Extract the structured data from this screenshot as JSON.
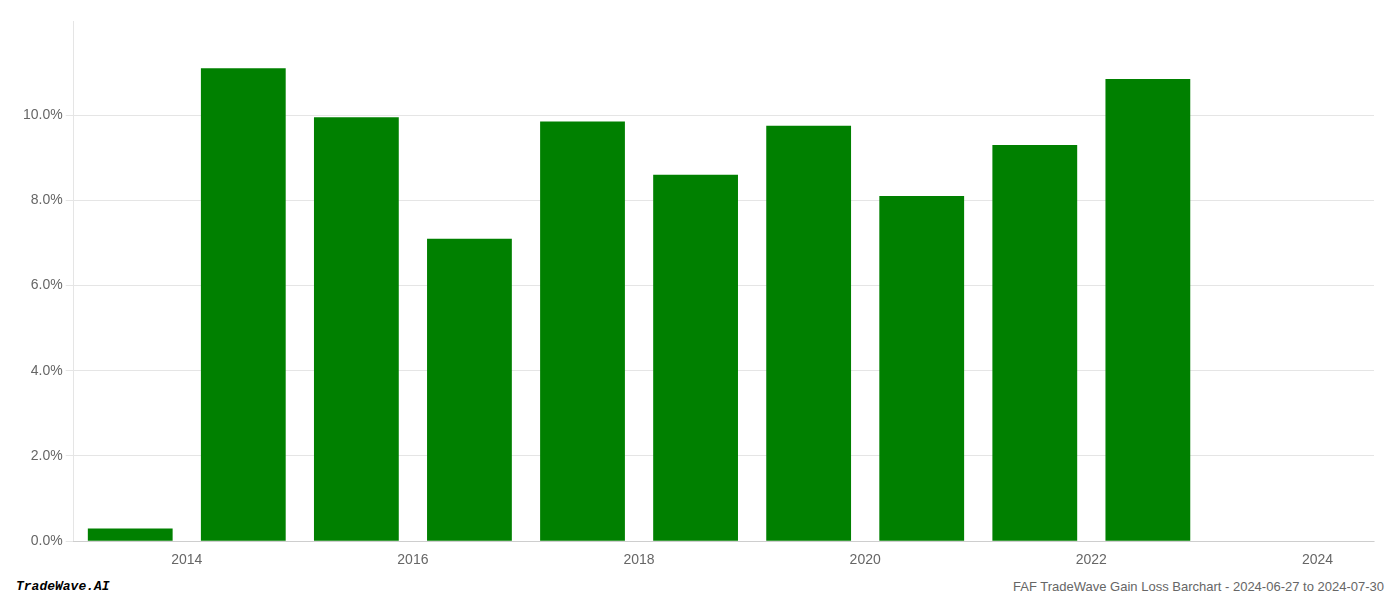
{
  "chart_data": {
    "type": "bar",
    "x": [
      2013.5,
      2014.5,
      2015.5,
      2016.5,
      2017.5,
      2018.5,
      2019.5,
      2020.5,
      2021.5,
      2022.5
    ],
    "values": [
      0.003,
      0.111,
      0.0995,
      0.071,
      0.0985,
      0.086,
      0.0975,
      0.081,
      0.093,
      0.1085
    ],
    "color": "#008000",
    "xlim": [
      2013.0,
      2024.5
    ],
    "xticks": [
      2014,
      2016,
      2018,
      2020,
      2022,
      2024
    ],
    "ylim": [
      0,
      0.122
    ],
    "yticks": [
      {
        "value": 0.0,
        "label": "0.0%"
      },
      {
        "value": 0.02,
        "label": "2.0%"
      },
      {
        "value": 0.04,
        "label": "4.0%"
      },
      {
        "value": 0.06,
        "label": "6.0%"
      },
      {
        "value": 0.08,
        "label": "8.0%"
      },
      {
        "value": 0.1,
        "label": "10.0%"
      }
    ],
    "grid": "y",
    "annotations": [
      "TradeWave.AI",
      "FAF TradeWave Gain Loss Barchart - 2024-06-27 to 2024-07-30"
    ]
  }
}
